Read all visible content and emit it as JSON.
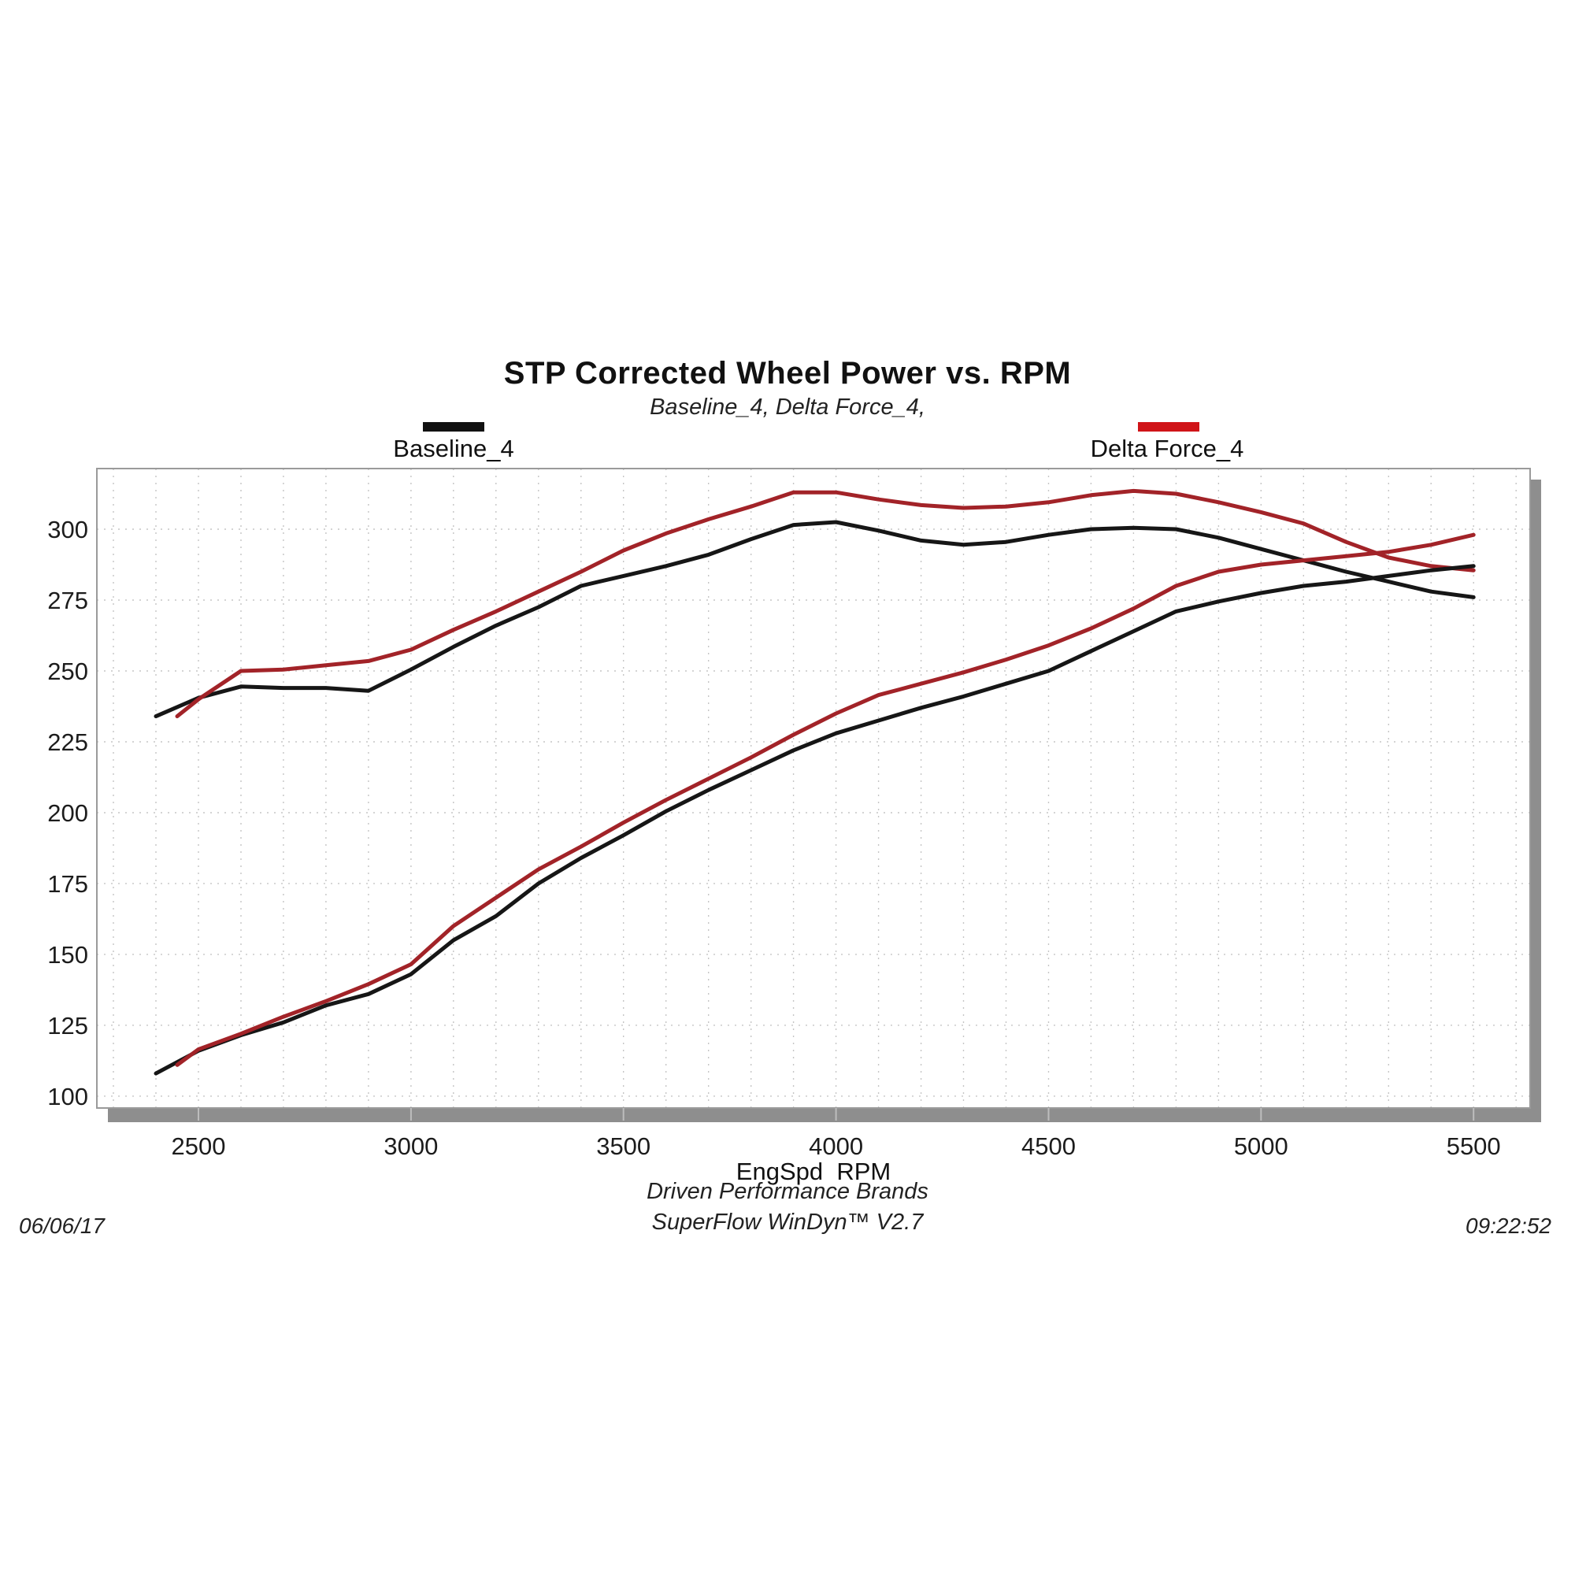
{
  "chart_data": {
    "type": "line",
    "title": "STP Corrected Wheel Power vs. RPM",
    "subtitle": "Baseline_4, Delta Force_4,",
    "xlabel": "EngSpd  RPM",
    "legend": [
      {
        "label": "Baseline_4",
        "color": "#111111"
      },
      {
        "label": "Delta Force_4",
        "color": "#d01418"
      }
    ],
    "axes": {
      "xlim": [
        2261,
        5633
      ],
      "ylim": [
        95.8,
        321.4
      ],
      "x_ticks": [
        2500,
        3000,
        3500,
        4000,
        4500,
        5000,
        5500
      ],
      "y_ticks": [
        100,
        125,
        150,
        175,
        200,
        225,
        250,
        275,
        300
      ],
      "x_grid_step": 100,
      "grid": true,
      "legend_position": "top"
    },
    "series": [
      {
        "name": "Baseline_4 (upper curve)",
        "color": "#161616",
        "x": [
          2400,
          2500,
          2600,
          2700,
          2800,
          2900,
          3000,
          3100,
          3200,
          3300,
          3400,
          3500,
          3600,
          3700,
          3800,
          3900,
          4000,
          4100,
          4200,
          4300,
          4400,
          4500,
          4600,
          4700,
          4800,
          4900,
          5000,
          5100,
          5200,
          5300,
          5400,
          5500
        ],
        "y": [
          234,
          240.5,
          244.5,
          244,
          244,
          243,
          250.5,
          258.5,
          266,
          272.5,
          280,
          283.5,
          287,
          291,
          296.5,
          301.5,
          302.5,
          299.5,
          296,
          294.5,
          295.5,
          298,
          300,
          300.5,
          300,
          297,
          293,
          289,
          285,
          281.5,
          278,
          276
        ]
      },
      {
        "name": "Delta Force_4 (upper curve)",
        "color": "#a22328",
        "x": [
          2450,
          2500,
          2600,
          2700,
          2800,
          2900,
          3000,
          3100,
          3200,
          3300,
          3400,
          3500,
          3600,
          3700,
          3800,
          3900,
          4000,
          4100,
          4200,
          4300,
          4400,
          4500,
          4600,
          4700,
          4800,
          4900,
          5000,
          5100,
          5200,
          5300,
          5400,
          5500
        ],
        "y": [
          234,
          240,
          250,
          250.5,
          252,
          253.5,
          257.5,
          264.5,
          271,
          278,
          285,
          292.5,
          298.5,
          303.5,
          308,
          313,
          313,
          310.5,
          308.5,
          307.5,
          308,
          309.5,
          312,
          313.5,
          312.5,
          309.5,
          306,
          302,
          295.5,
          290,
          287,
          285.5
        ]
      },
      {
        "name": "Baseline_4 (lower curve)",
        "color": "#161616",
        "x": [
          2400,
          2500,
          2600,
          2700,
          2800,
          2900,
          3000,
          3100,
          3200,
          3300,
          3400,
          3500,
          3600,
          3700,
          3800,
          3900,
          4000,
          4100,
          4200,
          4300,
          4400,
          4500,
          4600,
          4700,
          4800,
          4900,
          5000,
          5100,
          5200,
          5300,
          5400,
          5500
        ],
        "y": [
          108,
          116,
          121.5,
          126,
          132,
          136,
          143,
          155,
          163.5,
          175,
          184,
          192,
          200.5,
          208,
          215,
          222,
          228,
          232.5,
          237,
          241,
          245.5,
          250,
          257,
          264,
          271,
          274.5,
          277.5,
          280,
          281.5,
          283.5,
          285.5,
          287
        ]
      },
      {
        "name": "Delta Force_4 (lower curve)",
        "color": "#a22328",
        "x": [
          2450,
          2500,
          2600,
          2700,
          2800,
          2900,
          3000,
          3100,
          3200,
          3300,
          3400,
          3500,
          3600,
          3700,
          3800,
          3900,
          4000,
          4100,
          4200,
          4300,
          4400,
          4500,
          4600,
          4700,
          4800,
          4900,
          5000,
          5100,
          5200,
          5300,
          5400,
          5500
        ],
        "y": [
          111,
          116.5,
          122,
          128,
          133.5,
          139.5,
          146.5,
          160,
          170,
          180,
          188,
          196.5,
          204.5,
          212,
          219.5,
          227.5,
          235,
          241.5,
          245.5,
          249.5,
          254,
          259,
          265,
          272,
          280,
          285,
          287.5,
          289,
          290.5,
          292,
          294.5,
          298
        ]
      }
    ],
    "footer": {
      "center_line1": "Driven Performance Brands",
      "center_line2": "SuperFlow WinDyn™ V2.7",
      "left": "06/06/17",
      "right": "09:22:52"
    }
  },
  "style_colors": {
    "grid": "#c5c5c5",
    "plot_border": "#9a9a9a",
    "shadow": "#8e8e8e",
    "tick_text": "#1c1c1c"
  }
}
